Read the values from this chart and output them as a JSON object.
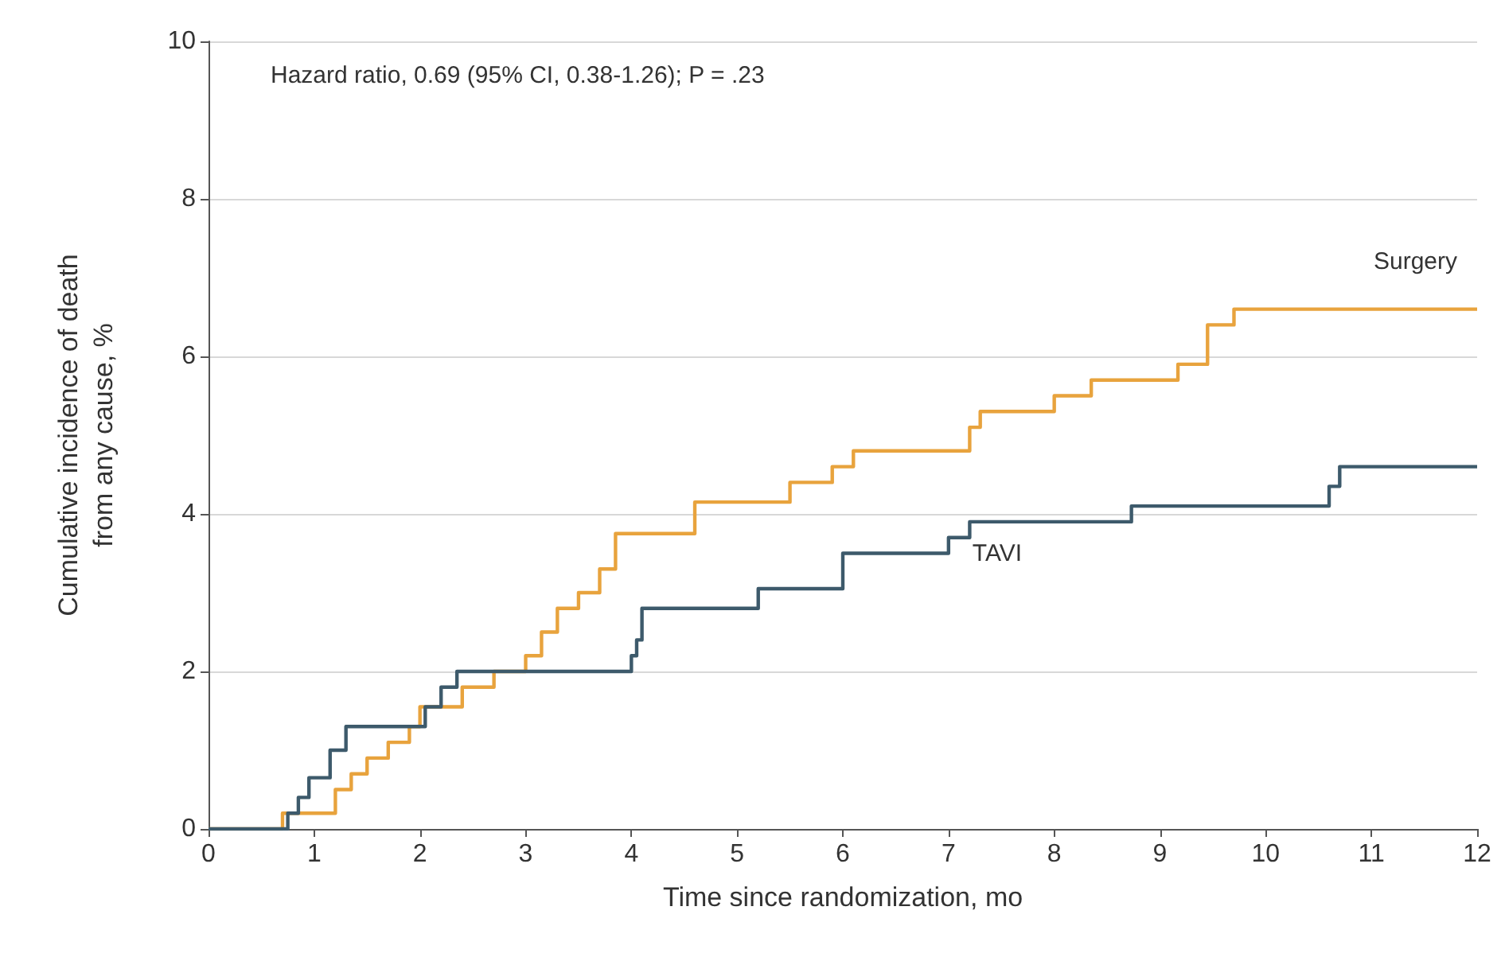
{
  "chart_data": {
    "type": "step",
    "xlabel": "Time since randomization, mo",
    "ylabel": "Cumulative incidence of death\nfrom any cause, %",
    "annotations": [
      "Hazard ratio, 0.69 (95% CI, 0.38-1.26); P = .23"
    ],
    "xlim": [
      0,
      12
    ],
    "xticks": [
      0,
      1,
      2,
      3,
      4,
      5,
      6,
      7,
      8,
      9,
      10,
      11,
      12
    ],
    "ylim": [
      0,
      10
    ],
    "yticks": [
      0,
      2,
      4,
      6,
      8,
      10
    ],
    "grid": "y",
    "legend": false,
    "marker": "none",
    "line_style": "solid",
    "series": [
      {
        "name": "Surgery",
        "color": "#e8a33d",
        "x": [
          0,
          0.7,
          1.2,
          1.35,
          1.5,
          1.7,
          1.9,
          2.0,
          2.4,
          2.7,
          3.0,
          3.15,
          3.3,
          3.5,
          3.7,
          3.85,
          4.6,
          5.5,
          5.9,
          6.1,
          7.2,
          7.3,
          8.0,
          8.35,
          9.17,
          9.45,
          9.7,
          12
        ],
        "values": [
          0,
          0.2,
          0.5,
          0.7,
          0.9,
          1.1,
          1.3,
          1.55,
          1.8,
          2.0,
          2.2,
          2.5,
          2.8,
          3.0,
          3.3,
          3.75,
          4.15,
          4.4,
          4.6,
          4.8,
          5.1,
          5.3,
          5.5,
          5.7,
          5.9,
          6.4,
          6.6,
          6.6
        ]
      },
      {
        "name": "TAVI",
        "color": "#3d5a6b",
        "x": [
          0,
          0.75,
          0.85,
          0.95,
          1.15,
          1.3,
          2.05,
          2.2,
          2.35,
          4.0,
          4.05,
          4.1,
          5.2,
          6.0,
          7.0,
          7.2,
          8.73,
          10.6,
          10.7,
          12
        ],
        "values": [
          0,
          0.2,
          0.4,
          0.65,
          1.0,
          1.3,
          1.55,
          1.8,
          2.0,
          2.2,
          2.4,
          2.8,
          3.05,
          3.5,
          3.7,
          3.9,
          4.1,
          4.35,
          4.6,
          4.6
        ]
      }
    ]
  }
}
